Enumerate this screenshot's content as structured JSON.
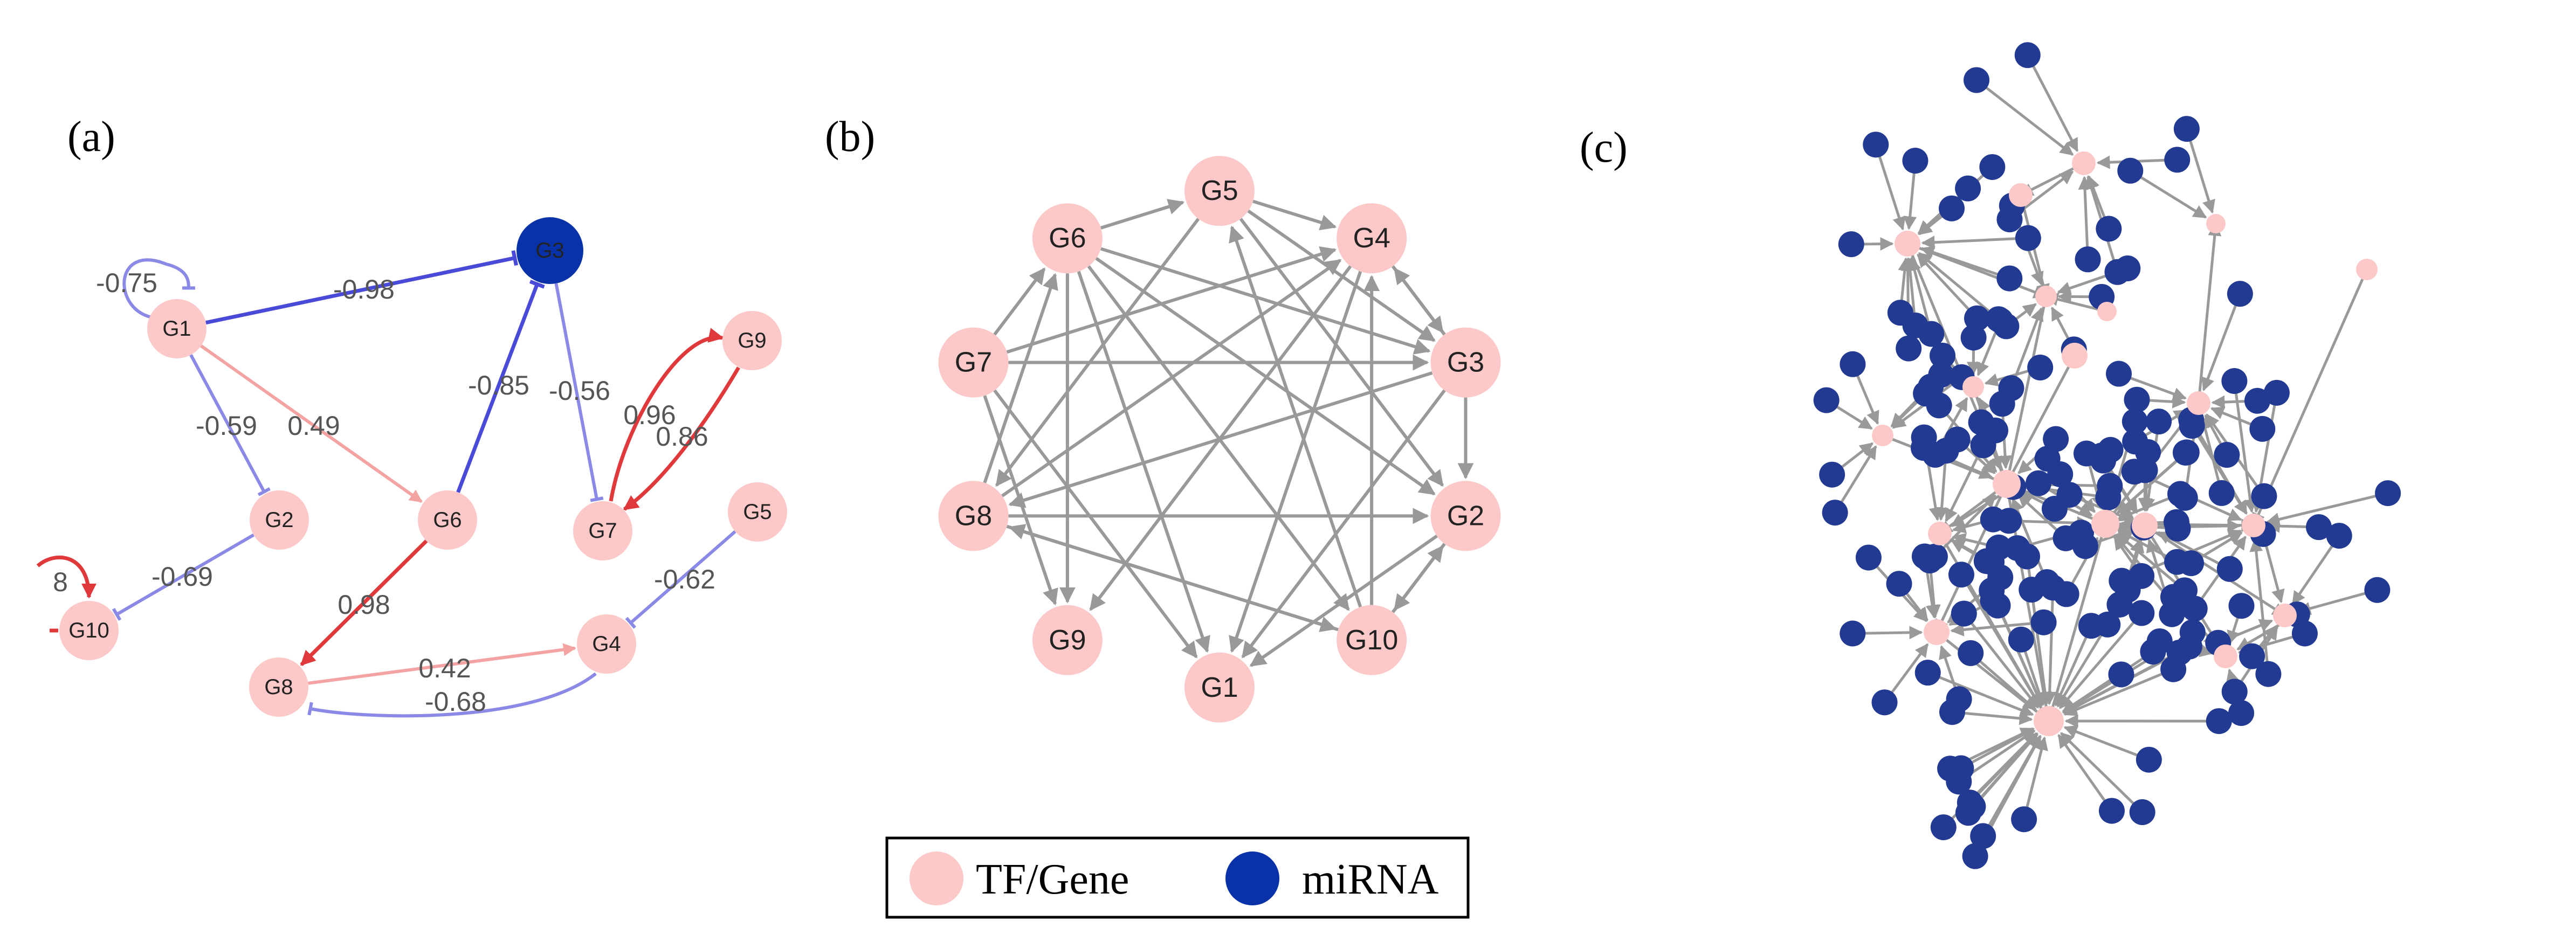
{
  "colors": {
    "gene": "#fcc8c8",
    "mirna": "#0a32a8",
    "mirna_c": "#233a93",
    "edge_gray": "#999999",
    "pos_strong": "#e0393c",
    "pos_light": "#f4a3a3",
    "neg_strong": "#4a4ad8",
    "neg_light": "#8a8ae6",
    "label": "#555555"
  },
  "panels": {
    "a": {
      "label": "(a)",
      "nodes": [
        {
          "id": "G1",
          "label": "G1",
          "type": "gene"
        },
        {
          "id": "G2",
          "label": "G2",
          "type": "gene"
        },
        {
          "id": "G3",
          "label": "G3",
          "type": "mirna"
        },
        {
          "id": "G4",
          "label": "G4",
          "type": "gene"
        },
        {
          "id": "G5",
          "label": "G5",
          "type": "gene"
        },
        {
          "id": "G6",
          "label": "G6",
          "type": "gene"
        },
        {
          "id": "G7",
          "label": "G7",
          "type": "gene"
        },
        {
          "id": "G8",
          "label": "G8",
          "type": "gene"
        },
        {
          "id": "G9",
          "label": "G9",
          "type": "gene"
        },
        {
          "id": "G10",
          "label": "G10",
          "type": "gene"
        }
      ],
      "edges": [
        {
          "from": "G1",
          "to": "G1",
          "weight": "-0.75",
          "sign": "neg",
          "strength": "light"
        },
        {
          "from": "G1",
          "to": "G3",
          "weight": "-0.98",
          "sign": "neg",
          "strength": "strong"
        },
        {
          "from": "G1",
          "to": "G2",
          "weight": "-0.59",
          "sign": "neg",
          "strength": "light"
        },
        {
          "from": "G1",
          "to": "G6",
          "weight": "0.49",
          "sign": "pos",
          "strength": "light"
        },
        {
          "from": "G6",
          "to": "G3",
          "weight": "-0.85",
          "sign": "neg",
          "strength": "strong"
        },
        {
          "from": "G3",
          "to": "G7",
          "weight": "-0.56",
          "sign": "neg",
          "strength": "light"
        },
        {
          "from": "G7",
          "to": "G9",
          "weight": "0.96",
          "sign": "pos",
          "strength": "strong"
        },
        {
          "from": "G9",
          "to": "G7",
          "weight": "0.86",
          "sign": "pos",
          "strength": "strong"
        },
        {
          "from": "G2",
          "to": "G10",
          "weight": "-0.69",
          "sign": "neg",
          "strength": "light"
        },
        {
          "from": "G10",
          "to": "G10",
          "weight": "8",
          "sign": "pos",
          "strength": "strong"
        },
        {
          "from": "G6",
          "to": "G8",
          "weight": "0.98",
          "sign": "pos",
          "strength": "strong"
        },
        {
          "from": "G8",
          "to": "G4",
          "weight": "0.42",
          "sign": "pos",
          "strength": "light"
        },
        {
          "from": "G4",
          "to": "G8",
          "weight": "-0.68",
          "sign": "neg",
          "strength": "light"
        },
        {
          "from": "G5",
          "to": "G4",
          "weight": "-0.62",
          "sign": "neg",
          "strength": "light"
        }
      ]
    },
    "b": {
      "label": "(b)",
      "nodes": [
        "G5",
        "G4",
        "G3",
        "G2",
        "G10",
        "G1",
        "G9",
        "G8",
        "G7",
        "G6"
      ],
      "edges": [
        [
          "G6",
          "G5"
        ],
        [
          "G5",
          "G4"
        ],
        [
          "G4",
          "G3"
        ],
        [
          "G3",
          "G2"
        ],
        [
          "G2",
          "G10"
        ],
        [
          "G10",
          "G2"
        ],
        [
          "G6",
          "G3"
        ],
        [
          "G6",
          "G2"
        ],
        [
          "G6",
          "G9"
        ],
        [
          "G6",
          "G1"
        ],
        [
          "G6",
          "G10"
        ],
        [
          "G7",
          "G6"
        ],
        [
          "G7",
          "G4"
        ],
        [
          "G7",
          "G3"
        ],
        [
          "G7",
          "G1"
        ],
        [
          "G7",
          "G9"
        ],
        [
          "G8",
          "G6"
        ],
        [
          "G8",
          "G4"
        ],
        [
          "G8",
          "G2"
        ],
        [
          "G8",
          "G10"
        ],
        [
          "G5",
          "G3"
        ],
        [
          "G5",
          "G2"
        ],
        [
          "G5",
          "G8"
        ],
        [
          "G3",
          "G4"
        ],
        [
          "G3",
          "G1"
        ],
        [
          "G3",
          "G8"
        ],
        [
          "G4",
          "G9"
        ],
        [
          "G4",
          "G1"
        ],
        [
          "G2",
          "G1"
        ],
        [
          "G10",
          "G4"
        ],
        [
          "G10",
          "G5"
        ],
        [
          "G10",
          "G8"
        ]
      ]
    },
    "c": {
      "label": "(c)"
    }
  },
  "legend": {
    "items": [
      {
        "label": "TF/Gene",
        "type": "gene"
      },
      {
        "label": "miRNA",
        "type": "mirna"
      }
    ]
  }
}
